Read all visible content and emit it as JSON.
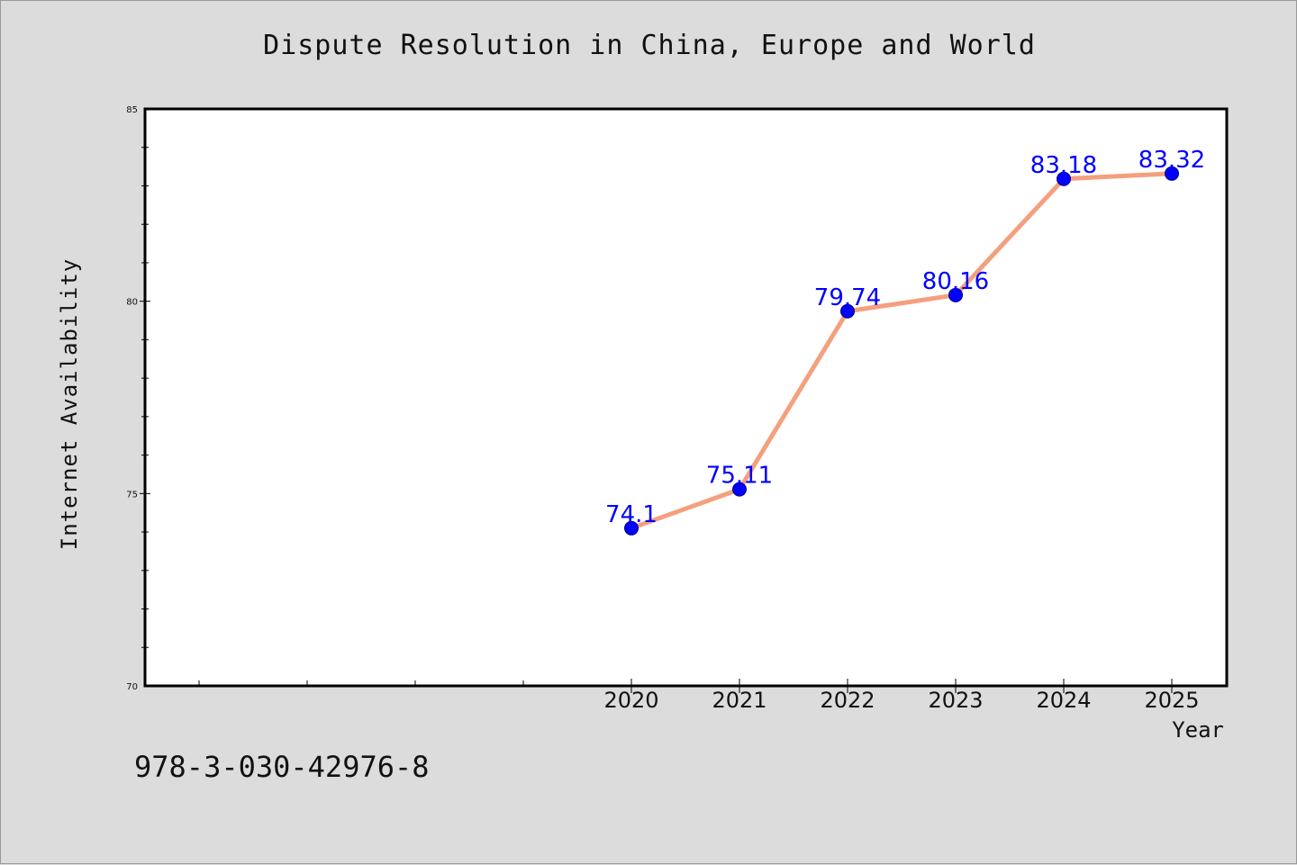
{
  "chart_data": {
    "type": "line",
    "title": "Dispute Resolution in China, Europe and World",
    "xlabel": "Year",
    "ylabel": "Internet Availability",
    "categories": [
      "2020",
      "2021",
      "2022",
      "2023",
      "2024",
      "2025"
    ],
    "series": [
      {
        "values": [
          74.1,
          75.11,
          79.74,
          80.16,
          83.18,
          83.32
        ],
        "labels": [
          "74.1",
          "75.11",
          "79.74",
          "80.16",
          "83.18",
          "83.32"
        ],
        "line_color": "#f4a07e",
        "marker_color": "#0000ff"
      }
    ],
    "ylim": [
      70,
      85
    ],
    "y_ticks": [
      "70",
      "75",
      "80",
      "85"
    ],
    "y_minor_step": 1,
    "x_minor_ticks": 4,
    "grid": false,
    "legend": "none",
    "label_color": "#0000ff",
    "footnote": "978-3-030-42976-8"
  }
}
